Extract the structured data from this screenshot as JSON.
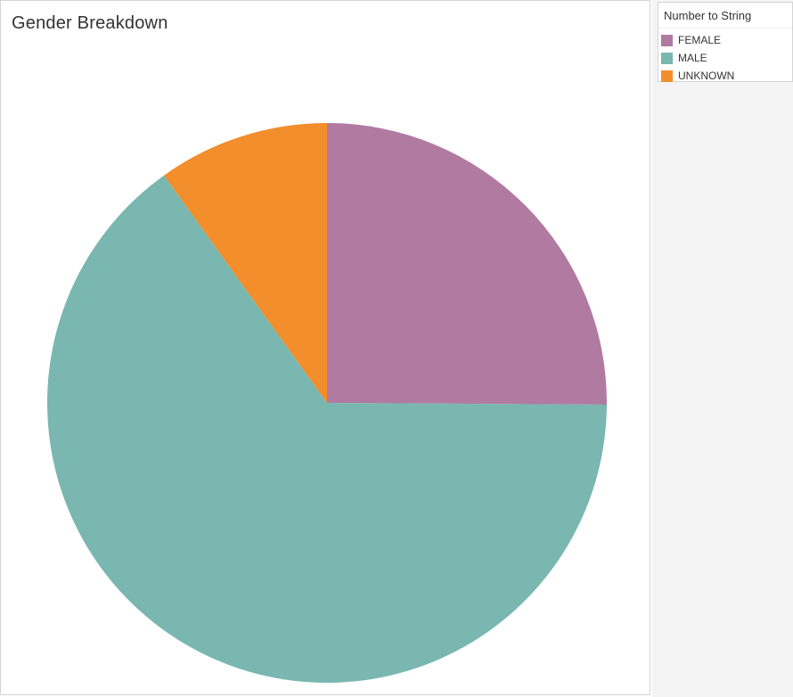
{
  "chart_data": {
    "type": "pie",
    "title": "Gender Breakdown",
    "categories": [
      "FEMALE",
      "MALE",
      "UNKNOWN"
    ],
    "values": [
      25.1,
      65.0,
      9.9
    ],
    "colors": [
      "#b07aa1",
      "#79b7b0",
      "#f28e2b"
    ],
    "legend": {
      "title": "Number to String",
      "placement": "right"
    }
  }
}
